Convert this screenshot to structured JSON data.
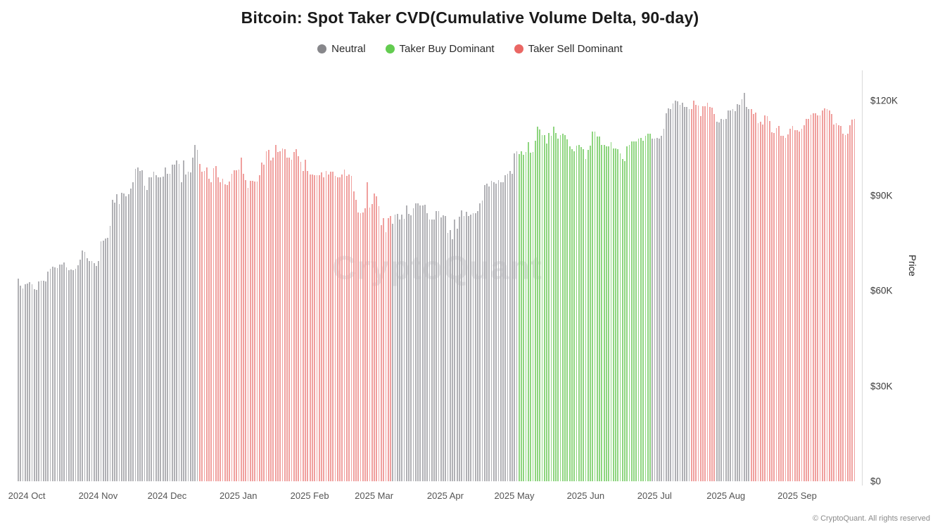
{
  "header": {
    "title": "Bitcoin: Spot Taker CVD(Cumulative Volume Delta, 90-day)",
    "legend": [
      {
        "label": "Neutral",
        "color": "#87878b"
      },
      {
        "label": "Taker Buy Dominant",
        "color": "#63cc50"
      },
      {
        "label": "Taker Sell Dominant",
        "color": "#ea6764"
      }
    ]
  },
  "watermark": {
    "text": "CryptoQuant"
  },
  "footer": {
    "copyright": "© CryptoQuant. All rights reserved"
  },
  "chart_data": {
    "type": "bar",
    "title": "Bitcoin: Spot Taker CVD(Cumulative Volume Delta, 90-day)",
    "ylabel": "Price",
    "unit": "USD thousands",
    "grid": false,
    "legend_position": "top",
    "x_start_date": "2024-10-01",
    "x_end_date": "2025-09-30",
    "days": 365,
    "y_max": 129.5,
    "y_ticks": [
      {
        "label": "$0",
        "value": 0
      },
      {
        "label": "$30K",
        "value": 30
      },
      {
        "label": "$60K",
        "value": 60
      },
      {
        "label": "$90K",
        "value": 90
      },
      {
        "label": "$120K",
        "value": 120
      }
    ],
    "x_ticks": [
      {
        "label": "2024 Oct",
        "day": 0
      },
      {
        "label": "2024 Nov",
        "day": 31
      },
      {
        "label": "2024 Dec",
        "day": 61
      },
      {
        "label": "2025 Jan",
        "day": 92
      },
      {
        "label": "2025 Feb",
        "day": 123
      },
      {
        "label": "2025 Mar",
        "day": 151
      },
      {
        "label": "2025 Apr",
        "day": 182
      },
      {
        "label": "2025 May",
        "day": 212
      },
      {
        "label": "2025 Jun",
        "day": 243
      },
      {
        "label": "2025 Jul",
        "day": 273
      },
      {
        "label": "2025 Aug",
        "day": 304
      },
      {
        "label": "2025 Sep",
        "day": 335
      }
    ],
    "regime_colors": {
      "neutral": "#b1b1b5",
      "buy": "#8ed57f",
      "sell": "#f0a09e"
    },
    "regime_labels": {
      "neutral": "Neutral",
      "buy": "Taker Buy Dominant",
      "sell": "Taker Sell Dominant"
    },
    "regime_segments": [
      {
        "regime": "neutral",
        "count": 79
      },
      {
        "regime": "sell",
        "count": 84
      },
      {
        "regime": "neutral",
        "count": 55
      },
      {
        "regime": "buy",
        "count": 58
      },
      {
        "regime": "neutral",
        "count": 17
      },
      {
        "regime": "sell",
        "count": 11
      },
      {
        "regime": "neutral",
        "count": 15
      },
      {
        "regime": "sell",
        "count": 46
      }
    ],
    "prices_usd_thousands": [
      63.8,
      61.7,
      60.8,
      62.1,
      62.4,
      62.8,
      62.1,
      60.6,
      60.3,
      62.9,
      63.1,
      63.2,
      62.9,
      66.1,
      67.0,
      67.6,
      67.4,
      67.1,
      68.4,
      68.4,
      69.0,
      67.4,
      66.6,
      66.7,
      66.6,
      67.0,
      68.0,
      69.9,
      72.7,
      72.3,
      70.2,
      69.5,
      69.4,
      68.7,
      67.8,
      69.4,
      75.6,
      75.9,
      76.5,
      76.7,
      80.4,
      88.7,
      87.9,
      90.4,
      87.3,
      91.0,
      90.6,
      89.9,
      90.5,
      92.3,
      94.3,
      98.4,
      99.0,
      97.7,
      98.0,
      93.1,
      91.9,
      95.9,
      95.7,
      97.5,
      96.4,
      95.8,
      95.9,
      96.0,
      98.8,
      96.9,
      97.0,
      99.9,
      99.8,
      101.1,
      100.0,
      94.3,
      101.1,
      96.6,
      97.5,
      97.3,
      102.1,
      106.1,
      104.5,
      100.0,
      97.5,
      97.7,
      98.9,
      95.3,
      94.2,
      98.6,
      99.3,
      95.7,
      94.3,
      95.3,
      93.5,
      93.4,
      94.4,
      96.9,
      98.1,
      98.1,
      98.3,
      102.1,
      96.9,
      95.0,
      92.5,
      94.7,
      94.6,
      94.5,
      94.5,
      96.5,
      100.5,
      99.9,
      104.0,
      104.4,
      101.1,
      102.0,
      106.1,
      103.7,
      103.9,
      104.8,
      104.7,
      102.1,
      102.1,
      101.3,
      103.7,
      104.7,
      102.4,
      100.6,
      97.7,
      101.3,
      97.9,
      96.6,
      96.6,
      96.5,
      96.5,
      96.5,
      97.4,
      95.8,
      97.9,
      96.6,
      97.5,
      97.6,
      96.2,
      95.8,
      95.7,
      96.6,
      98.3,
      96.2,
      96.6,
      96.3,
      91.4,
      88.6,
      84.7,
      84.4,
      84.7,
      86.0,
      94.3,
      86.2,
      87.3,
      90.6,
      89.9,
      86.8,
      80.7,
      83.0,
      78.5,
      82.9,
      83.7,
      81.1,
      84.0,
      84.3,
      82.6,
      84.0,
      82.7,
      86.9,
      84.2,
      83.8,
      86.1,
      87.5,
      87.5,
      86.9,
      86.9,
      87.2,
      84.4,
      82.6,
      82.4,
      82.5,
      85.2,
      85.1,
      83.2,
      83.8,
      83.5,
      78.2,
      79.2,
      76.3,
      82.6,
      79.6,
      83.4,
      85.3,
      83.7,
      85.0,
      83.7,
      84.0,
      84.5,
      84.5,
      85.2,
      87.5,
      88.5,
      93.4,
      93.7,
      92.9,
      94.7,
      94.3,
      93.8,
      95.0,
      94.2,
      94.2,
      96.5,
      96.9,
      97.9,
      96.9,
      103.3,
      104.0,
      103.1,
      104.1,
      103.0,
      103.8,
      106.8,
      103.5,
      103.7,
      107.3,
      111.7,
      110.9,
      109.0,
      109.0,
      106.5,
      109.7,
      108.9,
      111.7,
      109.7,
      107.9,
      109.0,
      109.5,
      109.0,
      107.8,
      105.6,
      104.6,
      103.9,
      105.7,
      105.9,
      105.4,
      104.7,
      101.6,
      104.4,
      105.7,
      110.3,
      110.3,
      108.7,
      108.6,
      105.9,
      106.1,
      105.5,
      105.5,
      106.8,
      104.9,
      104.9,
      104.7,
      103.3,
      101.5,
      100.9,
      105.6,
      106.1,
      107.2,
      107.0,
      107.1,
      108.1,
      108.3,
      107.4,
      108.8,
      109.6,
      109.6,
      108.0,
      108.1,
      108.3,
      108.1,
      108.9,
      111.0,
      115.9,
      117.5,
      117.4,
      119.1,
      119.9,
      119.8,
      118.7,
      119.3,
      118.0,
      117.9,
      117.3,
      117.4,
      119.9,
      118.6,
      118.4,
      115.1,
      118.1,
      118.1,
      119.4,
      118.0,
      117.7,
      115.8,
      113.4,
      113.2,
      114.1,
      113.9,
      114.1,
      116.8,
      116.9,
      117.4,
      116.6,
      118.8,
      118.7,
      120.5,
      122.5,
      118.0,
      117.4,
      117.4,
      115.7,
      116.3,
      112.9,
      113.4,
      112.5,
      115.4,
      115.1,
      113.5,
      110.1,
      109.8,
      111.4,
      112.0,
      108.8,
      108.8,
      108.2,
      109.3,
      111.2,
      112.0,
      110.7,
      110.7,
      110.2,
      111.2,
      112.1,
      114.1,
      114.3,
      115.5,
      116.0,
      115.9,
      115.4,
      115.4,
      116.8,
      117.5,
      117.2,
      116.9,
      115.7,
      112.5,
      112.8,
      112.1,
      111.9,
      109.6,
      109.2,
      109.5,
      112.3,
      114.0,
      114.2
    ]
  }
}
